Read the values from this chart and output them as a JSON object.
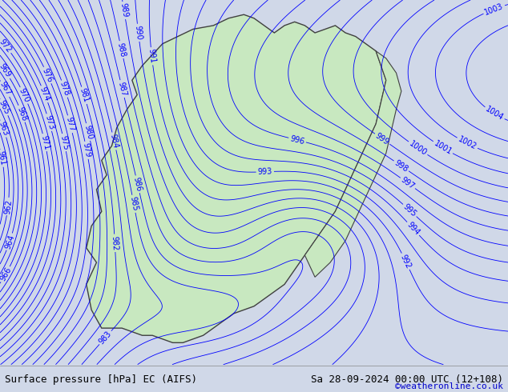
{
  "title_left": "Surface pressure [hPa] EC (AIFS)",
  "title_right": "Sa 28-09-2024 00:00 UTC (12+108)",
  "credit": "©weatheronline.co.uk",
  "bg_color": "#d0d8e8",
  "land_color": "#c8e8c0",
  "contour_color_blue": "#0000ff",
  "contour_color_black": "#000000",
  "contour_color_red": "#ff0000",
  "label_color": "#0000ff",
  "text_color": "#000000",
  "credit_color": "#0000cc",
  "figsize": [
    6.34,
    4.9
  ],
  "dpi": 100,
  "pressure_min": 960,
  "pressure_max": 1010,
  "pressure_step": 1,
  "font_size_bottom": 9,
  "font_size_labels": 7
}
